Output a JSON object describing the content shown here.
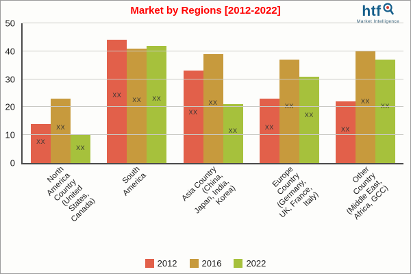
{
  "logo": {
    "text": "htf",
    "subtext": "Market Intelligence"
  },
  "chart_data": {
    "type": "bar",
    "title": "Market by Regions [2012-2022]",
    "categories": [
      "North\nAmerica\nCountry\n(United\nStates,\nCanada)",
      "South\nAmerica",
      "Asia Country\n(China,\nJapan, India,\nKorea)",
      "Europe\nCountry\n(Germany,\nUK, France,\nItaly)",
      "Other\nCountry\n(Middle East,\nAfrica, GCC)"
    ],
    "series": [
      {
        "name": "2012",
        "color": "#e2604a",
        "values": [
          14,
          44,
          33,
          23,
          22
        ]
      },
      {
        "name": "2016",
        "color": "#c79a3d",
        "values": [
          23,
          41,
          39,
          37,
          40
        ]
      },
      {
        "name": "2022",
        "color": "#a6c13c",
        "values": [
          10,
          42,
          21,
          31,
          37
        ]
      }
    ],
    "bar_value_label": "XX",
    "ylim": [
      0,
      50
    ],
    "yticks": [
      0,
      10,
      20,
      30,
      40,
      50
    ],
    "grid": "horizontal",
    "legend_position": "bottom"
  }
}
